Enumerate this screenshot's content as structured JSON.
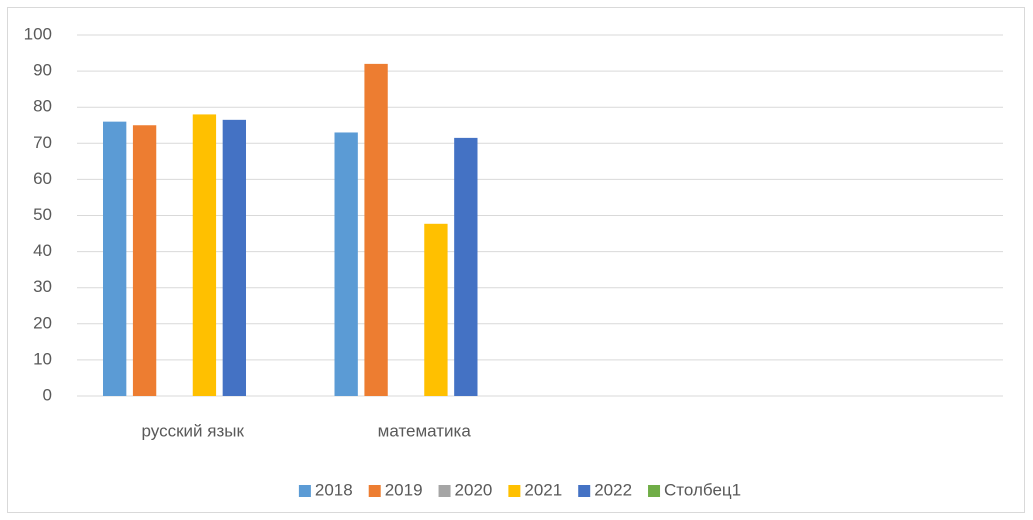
{
  "chart_data": {
    "type": "bar",
    "categories": [
      "русский язык",
      "математика",
      null,
      null
    ],
    "series": [
      {
        "name": "2018",
        "color": "#5b9bd5",
        "values": [
          76,
          73,
          null,
          null
        ]
      },
      {
        "name": "2019",
        "color": "#ed7d31",
        "values": [
          75,
          92,
          null,
          null
        ]
      },
      {
        "name": "2020",
        "color": "#a5a5a5",
        "values": [
          null,
          null,
          null,
          null
        ]
      },
      {
        "name": "2021",
        "color": "#ffc000",
        "values": [
          78,
          47.7,
          null,
          null
        ]
      },
      {
        "name": "2022",
        "color": "#4472c4",
        "values": [
          76.5,
          71.5,
          null,
          null
        ]
      },
      {
        "name": "Столбец1",
        "color": "#70ad47",
        "values": [
          null,
          null,
          null,
          null
        ]
      }
    ],
    "ylim": [
      0,
      100
    ],
    "yticks": [
      0,
      10,
      20,
      30,
      40,
      50,
      60,
      70,
      80,
      90,
      100
    ],
    "grid": true,
    "legend": "bottom"
  }
}
